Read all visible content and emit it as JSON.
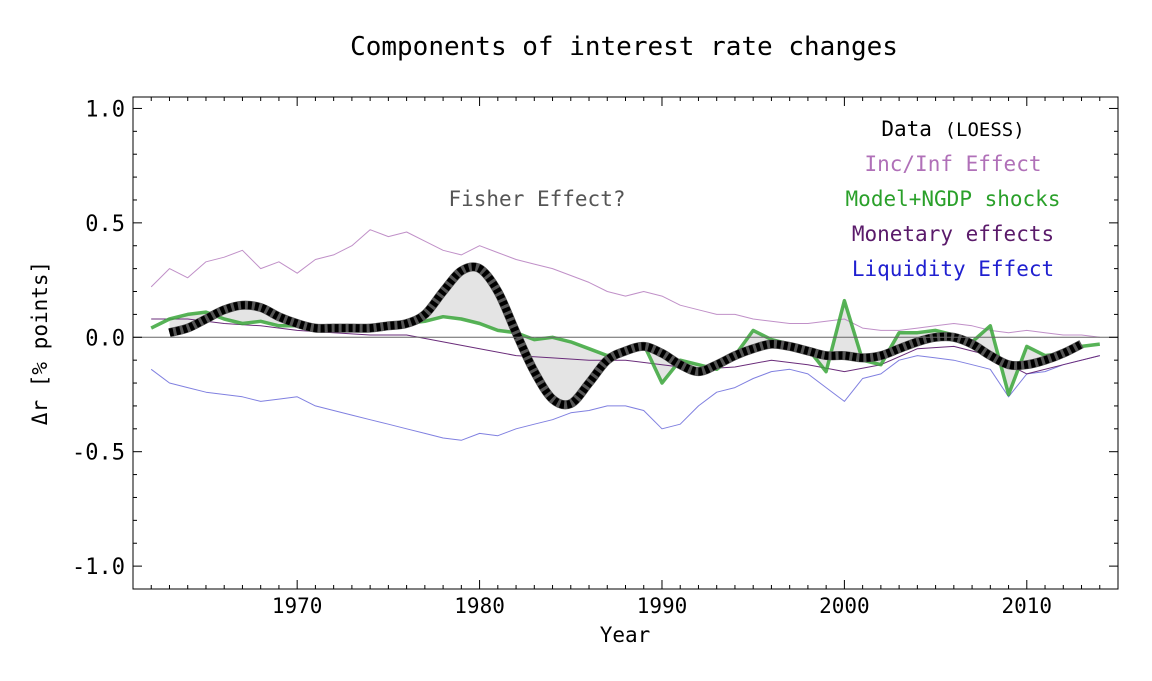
{
  "chart_data": {
    "type": "line",
    "title": "Components of interest rate changes",
    "xlabel": "Year",
    "ylabel": "Δr [% points]",
    "xlim": [
      1961,
      2015
    ],
    "ylim": [
      -1.1,
      1.05
    ],
    "xticks": [
      1970,
      1980,
      1990,
      2000,
      2010
    ],
    "yticks": [
      1.0,
      0.5,
      0.0,
      -0.5,
      -1.0
    ],
    "ytick_labels": [
      "1.0",
      "0.5",
      "0.0",
      "-0.5",
      "-1.0"
    ],
    "grid": false,
    "legend": {
      "placement": "top-right"
    },
    "annotation": {
      "text": "Fisher Effect?",
      "x": 1981.9,
      "y": 0.6
    },
    "series": [
      {
        "name": "Data (LOESS)",
        "label_main": "Data",
        "label_paren": "(LOESS)",
        "color": "#000000",
        "x": [
          1963,
          1964,
          1965,
          1966,
          1967,
          1968,
          1969,
          1970,
          1971,
          1972,
          1973,
          1974,
          1975,
          1976,
          1977,
          1978,
          1979,
          1980,
          1981,
          1982,
          1983,
          1984,
          1985,
          1986,
          1987,
          1988,
          1989,
          1990,
          1991,
          1992,
          1993,
          1994,
          1995,
          1996,
          1997,
          1998,
          1999,
          2000,
          2001,
          2002,
          2003,
          2004,
          2005,
          2006,
          2007,
          2008,
          2009,
          2010,
          2011,
          2012,
          2013
        ],
        "y": [
          0.02,
          0.04,
          0.08,
          0.12,
          0.14,
          0.13,
          0.09,
          0.06,
          0.04,
          0.04,
          0.04,
          0.04,
          0.05,
          0.06,
          0.1,
          0.2,
          0.29,
          0.3,
          0.2,
          0.02,
          -0.15,
          -0.27,
          -0.29,
          -0.2,
          -0.1,
          -0.06,
          -0.04,
          -0.07,
          -0.12,
          -0.15,
          -0.12,
          -0.08,
          -0.05,
          -0.03,
          -0.04,
          -0.06,
          -0.08,
          -0.08,
          -0.09,
          -0.08,
          -0.05,
          -0.02,
          0.0,
          0.0,
          -0.03,
          -0.08,
          -0.12,
          -0.12,
          -0.1,
          -0.07,
          -0.03
        ]
      },
      {
        "name": "Inc/Inf Effect",
        "color": "#c090c8",
        "x": [
          1962,
          1963,
          1964,
          1965,
          1966,
          1967,
          1968,
          1969,
          1970,
          1971,
          1972,
          1973,
          1974,
          1975,
          1976,
          1977,
          1978,
          1979,
          1980,
          1981,
          1982,
          1983,
          1984,
          1985,
          1986,
          1987,
          1988,
          1989,
          1990,
          1991,
          1992,
          1993,
          1994,
          1995,
          1996,
          1997,
          1998,
          1999,
          2000,
          2001,
          2002,
          2003,
          2004,
          2005,
          2006,
          2007,
          2008,
          2009,
          2010,
          2011,
          2012,
          2013,
          2014
        ],
        "y": [
          0.22,
          0.3,
          0.26,
          0.33,
          0.35,
          0.38,
          0.3,
          0.33,
          0.28,
          0.34,
          0.36,
          0.4,
          0.47,
          0.44,
          0.46,
          0.42,
          0.38,
          0.36,
          0.4,
          0.37,
          0.34,
          0.32,
          0.3,
          0.27,
          0.24,
          0.2,
          0.18,
          0.2,
          0.18,
          0.14,
          0.12,
          0.1,
          0.1,
          0.08,
          0.07,
          0.06,
          0.06,
          0.07,
          0.08,
          0.04,
          0.03,
          0.03,
          0.04,
          0.05,
          0.06,
          0.05,
          0.03,
          0.02,
          0.03,
          0.02,
          0.01,
          0.01,
          0.0
        ]
      },
      {
        "name": "Model+NGDP shocks",
        "color": "#3aa63a",
        "x": [
          1962,
          1963,
          1964,
          1965,
          1966,
          1967,
          1968,
          1969,
          1970,
          1971,
          1972,
          1973,
          1974,
          1975,
          1976,
          1977,
          1978,
          1979,
          1980,
          1981,
          1982,
          1983,
          1984,
          1985,
          1986,
          1987,
          1988,
          1989,
          1990,
          1991,
          1992,
          1993,
          1994,
          1995,
          1996,
          1997,
          1998,
          1999,
          2000,
          2001,
          2002,
          2003,
          2004,
          2005,
          2006,
          2007,
          2008,
          2009,
          2010,
          2011,
          2012,
          2013,
          2014
        ],
        "y": [
          0.04,
          0.08,
          0.1,
          0.11,
          0.08,
          0.06,
          0.07,
          0.05,
          0.05,
          0.04,
          0.05,
          0.05,
          0.04,
          0.05,
          0.06,
          0.07,
          0.09,
          0.08,
          0.06,
          0.03,
          0.02,
          -0.01,
          0.0,
          -0.02,
          -0.05,
          -0.08,
          -0.06,
          -0.03,
          -0.2,
          -0.1,
          -0.12,
          -0.14,
          -0.08,
          0.03,
          -0.01,
          -0.03,
          -0.05,
          -0.15,
          0.16,
          -0.1,
          -0.12,
          0.02,
          0.02,
          0.03,
          0.01,
          -0.02,
          0.05,
          -0.25,
          -0.04,
          -0.08,
          -0.07,
          -0.04,
          -0.03
        ]
      },
      {
        "name": "Monetary effects",
        "color": "#6a2c7a",
        "x": [
          1962,
          1964,
          1966,
          1968,
          1970,
          1972,
          1974,
          1976,
          1978,
          1980,
          1982,
          1984,
          1986,
          1988,
          1990,
          1992,
          1994,
          1996,
          1998,
          2000,
          2002,
          2004,
          2006,
          2008,
          2010,
          2012,
          2014
        ],
        "y": [
          0.08,
          0.08,
          0.06,
          0.05,
          0.03,
          0.02,
          0.01,
          0.01,
          -0.02,
          -0.05,
          -0.08,
          -0.09,
          -0.1,
          -0.1,
          -0.12,
          -0.14,
          -0.13,
          -0.1,
          -0.12,
          -0.15,
          -0.12,
          -0.05,
          -0.04,
          -0.08,
          -0.16,
          -0.12,
          -0.08
        ]
      },
      {
        "name": "Liquidity Effect",
        "color": "#8080e0",
        "x": [
          1962,
          1963,
          1964,
          1965,
          1966,
          1967,
          1968,
          1969,
          1970,
          1971,
          1972,
          1973,
          1974,
          1975,
          1976,
          1977,
          1978,
          1979,
          1980,
          1981,
          1982,
          1983,
          1984,
          1985,
          1986,
          1987,
          1988,
          1989,
          1990,
          1991,
          1992,
          1993,
          1994,
          1995,
          1996,
          1997,
          1998,
          1999,
          2000,
          2001,
          2002,
          2003,
          2004,
          2005,
          2006,
          2007,
          2008,
          2009,
          2010,
          2011,
          2012,
          2013,
          2014
        ],
        "y": [
          -0.14,
          -0.2,
          -0.22,
          -0.24,
          -0.25,
          -0.26,
          -0.28,
          -0.27,
          -0.26,
          -0.3,
          -0.32,
          -0.34,
          -0.36,
          -0.38,
          -0.4,
          -0.42,
          -0.44,
          -0.45,
          -0.42,
          -0.43,
          -0.4,
          -0.38,
          -0.36,
          -0.33,
          -0.32,
          -0.3,
          -0.3,
          -0.32,
          -0.4,
          -0.38,
          -0.3,
          -0.24,
          -0.22,
          -0.18,
          -0.15,
          -0.14,
          -0.16,
          -0.22,
          -0.28,
          -0.18,
          -0.16,
          -0.1,
          -0.08,
          -0.09,
          -0.1,
          -0.12,
          -0.14,
          -0.26,
          -0.16,
          -0.15,
          -0.12,
          -0.1,
          -0.08
        ]
      }
    ],
    "shaded_region": {
      "between": [
        "Data (LOESS)",
        "Model+NGDP shocks"
      ],
      "color": "#e4e4e4"
    }
  }
}
